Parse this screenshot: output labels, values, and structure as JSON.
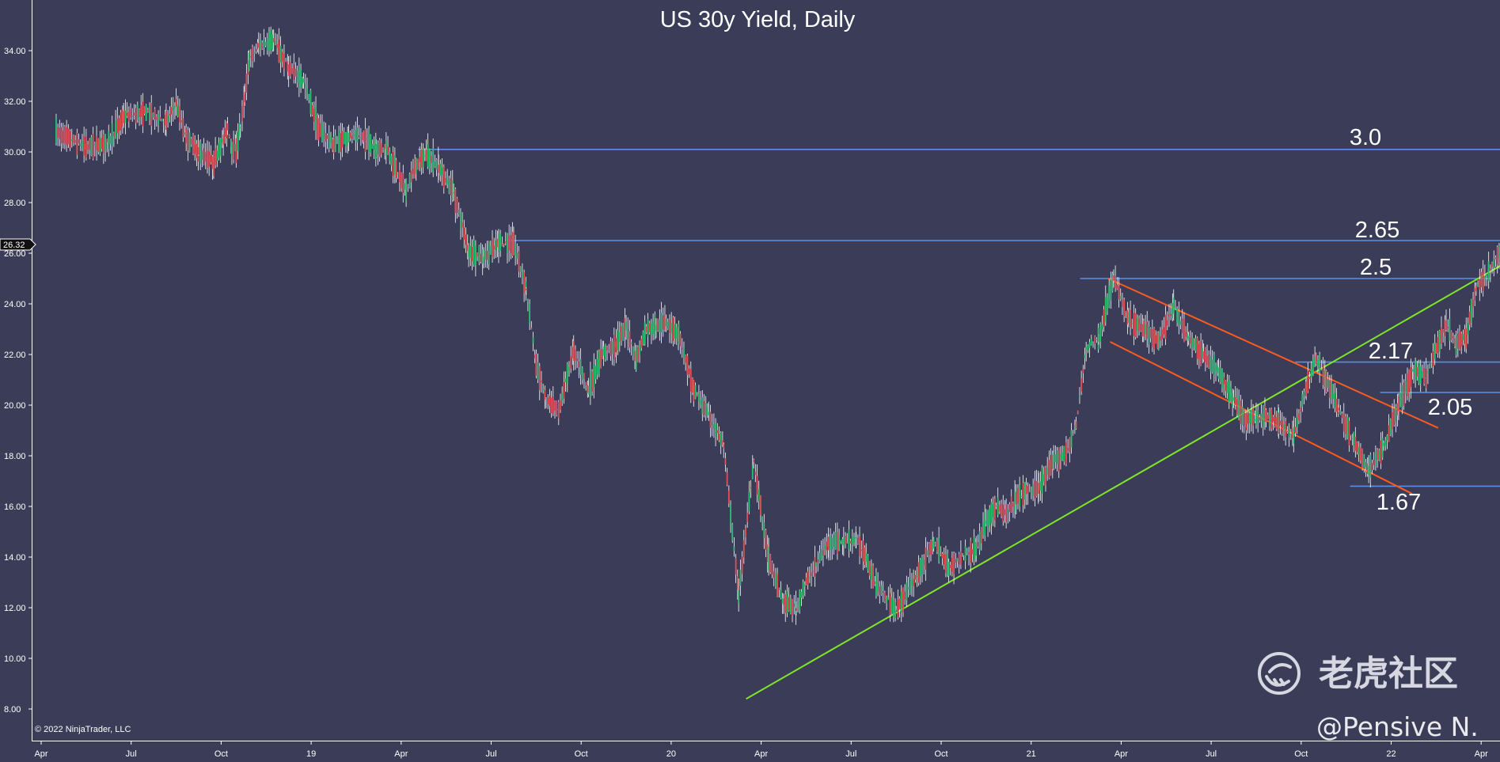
{
  "chart_data": {
    "type": "line",
    "title": "US 30y Yield, Daily",
    "xlabel": "",
    "ylabel": "",
    "ylim": [
      7.5,
      35.5
    ],
    "y_ticks": [
      "8.00",
      "10.00",
      "12.00",
      "14.00",
      "16.00",
      "18.00",
      "20.00",
      "22.00",
      "24.00",
      "26.00",
      "28.00",
      "30.00",
      "32.00",
      "34.00"
    ],
    "x_tick_labels": [
      "Apr",
      "Jul",
      "Oct",
      "19",
      "Apr",
      "Jul",
      "Oct",
      "20",
      "Apr",
      "Jul",
      "Oct",
      "21",
      "Apr",
      "Jul",
      "Oct",
      "22",
      "Apr"
    ],
    "grid": false,
    "current_value": "26.32",
    "series": [
      {
        "values": [
          30.8,
          30.2,
          30.4,
          31.4,
          31.6,
          31.2,
          31.9,
          30.6,
          30.0,
          29.6,
          30.5,
          31.0,
          30.2,
          30.1,
          31.0,
          32.2,
          33.6,
          34.2,
          34.4,
          33.3,
          32.8,
          30.9,
          30.3,
          30.6,
          30.6,
          30.1,
          30.2,
          29.3,
          28.5,
          29.5,
          29.9,
          29.4,
          28.4,
          26.1,
          25.8,
          26.4,
          26.4,
          24.6,
          21.6,
          20.2,
          19.8,
          22.2,
          20.6,
          22.1,
          22.4,
          23.1,
          21.8,
          23.0,
          23.1,
          23.3,
          22.8,
          20.6,
          19.6,
          18.4,
          12.5,
          17.8,
          13.9,
          12.2,
          12.0,
          13.0,
          13.7,
          14.6,
          14.6,
          14.7,
          14.0,
          12.9,
          11.9,
          13.4,
          14.6,
          13.6,
          14.1,
          14.3,
          15.4,
          16.0,
          15.7,
          16.3,
          16.6,
          16.7,
          17.8,
          18.1,
          19.2,
          22.3,
          22.6,
          25.0,
          23.4,
          23.0,
          22.5,
          23.9,
          22.6,
          22.0,
          21.3,
          20.2,
          19.4,
          19.5,
          19.6,
          19.3,
          18.8,
          20.7,
          21.9,
          21.0,
          19.8,
          18.6,
          17.4,
          18.4,
          20.0,
          21.4,
          21.1,
          22.2,
          23.2,
          22.4,
          22.7,
          24.6,
          25.3,
          26.3
        ],
        "dates": [
          "2018-04",
          "2018-05",
          "2018-06",
          "2018-06",
          "2018-07",
          "2018-08",
          "2018-08",
          "2018-08",
          "2018-09",
          "2018-09",
          "2018-10",
          "2018-10",
          "2018-10",
          "2018-10",
          "2018-10",
          "2018-10",
          "2018-10",
          "2018-11",
          "2018-11",
          "2018-12",
          "2018-12",
          "2019-01",
          "2019-01",
          "2019-02",
          "2019-02",
          "2019-03",
          "2019-03",
          "2019-03",
          "2019-04",
          "2019-04",
          "2019-04",
          "2019-05",
          "2019-05",
          "2019-06",
          "2019-06",
          "2019-07",
          "2019-07",
          "2019-08",
          "2019-08",
          "2019-08",
          "2019-09",
          "2019-09",
          "2019-10",
          "2019-10",
          "2019-11",
          "2019-11",
          "2019-11",
          "2019-12",
          "2019-12",
          "2019-12",
          "2020-01",
          "2020-01",
          "2020-02",
          "2020-02",
          "2020-03",
          "2020-03",
          "2020-04",
          "2020-04",
          "2020-05",
          "2020-05",
          "2020-05",
          "2020-06",
          "2020-06",
          "2020-07",
          "2020-07",
          "2020-07",
          "2020-08",
          "2020-09",
          "2020-09",
          "2020-10",
          "2020-10",
          "2020-11",
          "2020-11",
          "2020-11",
          "2020-12",
          "2020-12",
          "2020-12",
          "2021-01",
          "2021-01",
          "2021-02",
          "2021-02",
          "2021-02",
          "2021-03",
          "2021-03",
          "2021-04",
          "2021-04",
          "2021-05",
          "2021-05",
          "2021-06",
          "2021-06",
          "2021-07",
          "2021-07",
          "2021-08",
          "2021-08",
          "2021-08",
          "2021-09",
          "2021-09",
          "2021-10",
          "2021-10",
          "2021-10",
          "2021-11",
          "2021-11",
          "2021-12",
          "2021-12",
          "2022-01",
          "2022-01",
          "2022-02",
          "2022-02",
          "2022-02",
          "2022-03",
          "2022-03",
          "2022-03",
          "2022-04",
          "2022-04"
        ]
      }
    ],
    "levels": [
      {
        "label": "3.0",
        "value": 30.1,
        "color": "#5b8ee6"
      },
      {
        "label": "2.65",
        "value": 26.5,
        "color": "#5b8ee6"
      },
      {
        "label": "2.5",
        "value": 25.0,
        "color": "#5b8ee6"
      },
      {
        "label": "2.17",
        "value": 21.7,
        "color": "#5b8ee6"
      },
      {
        "label": "2.05",
        "value": 20.5,
        "color": "#5b8ee6"
      },
      {
        "label": "1.67",
        "value": 16.8,
        "color": "#5b8ee6"
      }
    ],
    "trend_lines": [
      {
        "color": "#7ee626",
        "from": {
          "date": "2020-03",
          "value": 8.4
        },
        "to": {
          "date": "2022-04",
          "value": 25.5
        }
      },
      {
        "color": "#ff5a1f",
        "from": {
          "date": "2021-03",
          "value": 25.0
        },
        "to": {
          "date": "2022-02",
          "value": 19.1
        }
      },
      {
        "color": "#ff5a1f",
        "from": {
          "date": "2021-03",
          "value": 22.5
        },
        "to": {
          "date": "2022-01",
          "value": 16.5
        }
      }
    ],
    "colors": {
      "background": "#3b3d58",
      "up": "#2fbf71",
      "down": "#e0505a",
      "axis": "#ffffff"
    }
  },
  "copyright": "© 2022 NinjaTrader, LLC",
  "watermark": "老虎社区",
  "handle": "@Pensive N."
}
